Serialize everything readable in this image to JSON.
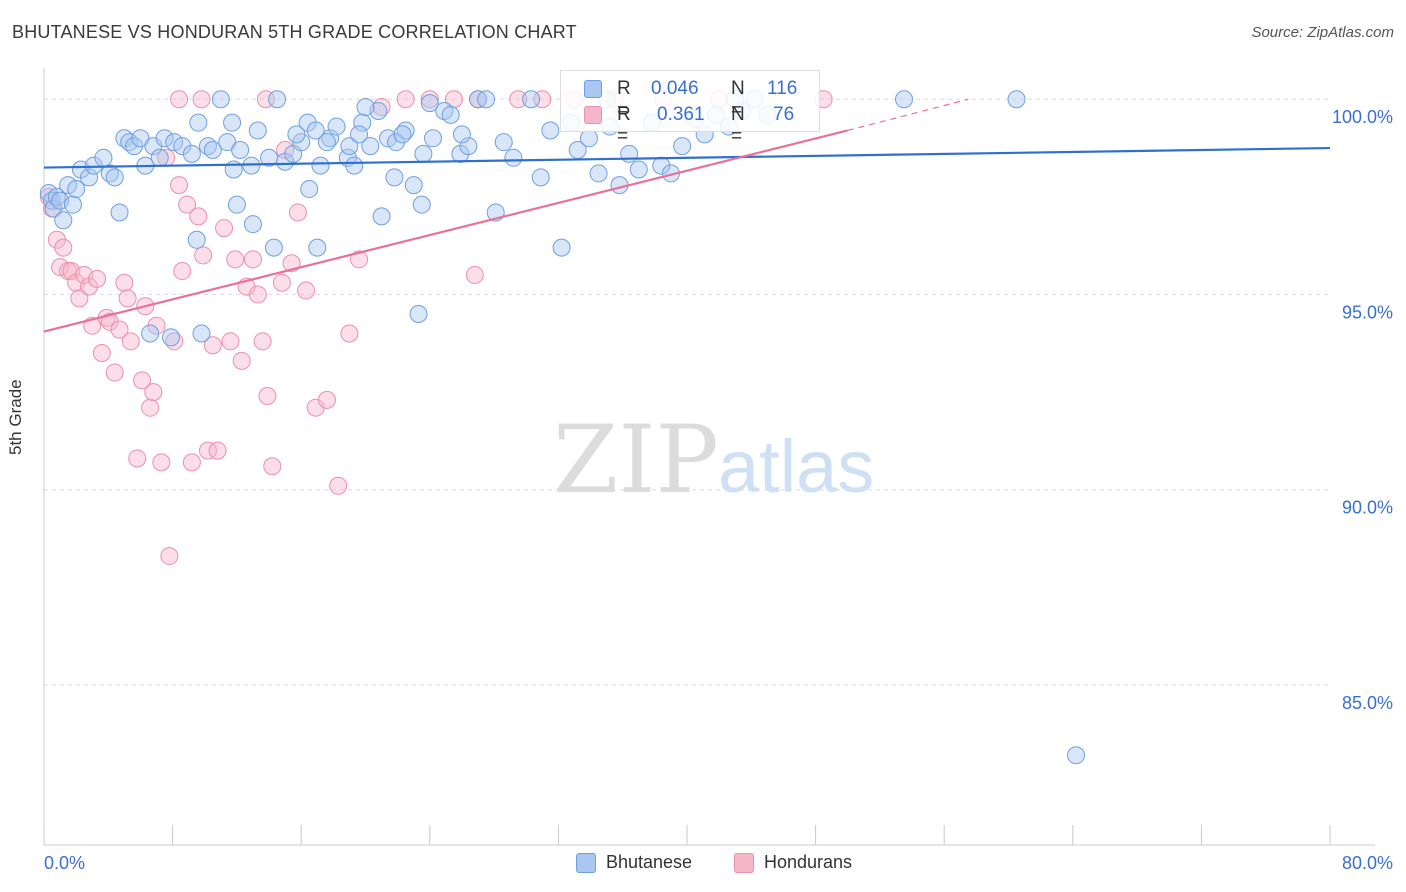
{
  "title": "BHUTANESE VS HONDURAN 5TH GRADE CORRELATION CHART",
  "source": "Source: ZipAtlas.com",
  "watermark": {
    "zip": "ZIP",
    "atlas": "atlas"
  },
  "legend_box": [
    {
      "r_label": "R =",
      "r_value": "0.046",
      "n_label": "N =",
      "n_value": "116"
    },
    {
      "r_label": "R =",
      "r_value": "0.361",
      "n_label": "N =",
      "n_value": "76"
    }
  ],
  "colors": {
    "blue_fill": "#a9c7f0",
    "blue_stroke": "#6f9fe0",
    "blue_line": "#2f6fd0",
    "pink_fill": "#f6b6c9",
    "pink_stroke": "#ec8fac",
    "pink_line": "#e8709a",
    "axis_text": "#3a6fd0",
    "grid": "#dcdcdc"
  },
  "chart_data": {
    "type": "scatter",
    "xlabel": "",
    "ylabel": "5th Grade",
    "xlim": [
      0,
      80
    ],
    "ylim": [
      80.9,
      100.8
    ],
    "x_tick_labels": [
      "0.0%",
      "80.0%"
    ],
    "y_ticks": [
      100,
      95,
      90,
      85
    ],
    "y_tick_labels": [
      "100.0%",
      "95.0%",
      "90.0%",
      "85.0%"
    ],
    "grid": true,
    "legend_position": "bottom",
    "series": [
      {
        "name": "Bhutanese",
        "color": "blue",
        "regression": {
          "x0": 0,
          "y0": 98.25,
          "x1": 80,
          "y1": 98.75
        },
        "points": [
          [
            0.3,
            97.6
          ],
          [
            0.5,
            97.4
          ],
          [
            0.6,
            97.2
          ],
          [
            0.8,
            97.5
          ],
          [
            1.0,
            97.4
          ],
          [
            1.2,
            96.9
          ],
          [
            1.5,
            97.8
          ],
          [
            1.8,
            97.3
          ],
          [
            2.0,
            97.7
          ],
          [
            2.3,
            98.2
          ],
          [
            2.8,
            98.0
          ],
          [
            3.1,
            98.3
          ],
          [
            3.7,
            98.5
          ],
          [
            4.1,
            98.1
          ],
          [
            4.4,
            98.0
          ],
          [
            4.7,
            97.1
          ],
          [
            5.0,
            99.0
          ],
          [
            5.3,
            98.9
          ],
          [
            5.6,
            98.8
          ],
          [
            6.0,
            99.0
          ],
          [
            6.3,
            98.3
          ],
          [
            6.8,
            98.8
          ],
          [
            7.2,
            98.5
          ],
          [
            7.5,
            99.0
          ],
          [
            8.1,
            98.9
          ],
          [
            8.6,
            98.8
          ],
          [
            9.2,
            98.6
          ],
          [
            9.6,
            99.4
          ],
          [
            10.2,
            98.8
          ],
          [
            10.5,
            98.7
          ],
          [
            11.0,
            100.0
          ],
          [
            11.4,
            98.9
          ],
          [
            11.8,
            98.2
          ],
          [
            12.2,
            98.7
          ],
          [
            12.9,
            98.3
          ],
          [
            13.3,
            99.2
          ],
          [
            14.0,
            98.5
          ],
          [
            14.5,
            100.0
          ],
          [
            15.0,
            98.4
          ],
          [
            15.5,
            98.6
          ],
          [
            16.0,
            98.9
          ],
          [
            16.4,
            99.4
          ],
          [
            16.9,
            99.2
          ],
          [
            17.2,
            98.3
          ],
          [
            17.8,
            99.0
          ],
          [
            18.2,
            99.3
          ],
          [
            18.9,
            98.5
          ],
          [
            19.3,
            98.3
          ],
          [
            19.8,
            99.4
          ],
          [
            20.3,
            98.8
          ],
          [
            20.8,
            99.7
          ],
          [
            21.4,
            99.0
          ],
          [
            21.9,
            98.9
          ],
          [
            22.5,
            99.2
          ],
          [
            23.0,
            97.8
          ],
          [
            23.6,
            98.6
          ],
          [
            24.2,
            99.0
          ],
          [
            24.9,
            99.7
          ],
          [
            25.3,
            99.6
          ],
          [
            25.9,
            98.6
          ],
          [
            26.4,
            98.8
          ],
          [
            27.0,
            100.0
          ],
          [
            27.5,
            100.0
          ],
          [
            28.1,
            97.1
          ],
          [
            28.6,
            98.9
          ],
          [
            29.2,
            98.5
          ],
          [
            30.3,
            100.0
          ],
          [
            30.9,
            98.0
          ],
          [
            31.5,
            99.2
          ],
          [
            32.2,
            96.2
          ],
          [
            32.8,
            99.4
          ],
          [
            33.2,
            98.7
          ],
          [
            33.9,
            99.0
          ],
          [
            34.5,
            98.1
          ],
          [
            35.2,
            99.3
          ],
          [
            35.8,
            97.8
          ],
          [
            36.4,
            98.6
          ],
          [
            37.0,
            98.2
          ],
          [
            37.8,
            99.4
          ],
          [
            38.4,
            98.3
          ],
          [
            39.0,
            98.1
          ],
          [
            39.7,
            98.8
          ],
          [
            40.5,
            99.5
          ],
          [
            41.1,
            99.1
          ],
          [
            41.8,
            99.6
          ],
          [
            42.6,
            99.3
          ],
          [
            43.4,
            99.7
          ],
          [
            44.2,
            100.0
          ],
          [
            45.0,
            99.6
          ],
          [
            12.0,
            97.3
          ],
          [
            13.0,
            96.8
          ],
          [
            14.3,
            96.2
          ],
          [
            16.5,
            97.7
          ],
          [
            17.0,
            96.2
          ],
          [
            19.0,
            98.8
          ],
          [
            19.6,
            99.1
          ],
          [
            21.0,
            97.0
          ],
          [
            21.8,
            98.0
          ],
          [
            22.3,
            99.1
          ],
          [
            23.5,
            97.3
          ],
          [
            6.6,
            94.0
          ],
          [
            7.9,
            93.9
          ],
          [
            9.8,
            94.0
          ],
          [
            9.5,
            96.4
          ],
          [
            11.7,
            99.4
          ],
          [
            15.7,
            99.1
          ],
          [
            17.6,
            98.9
          ],
          [
            20.0,
            99.8
          ],
          [
            24.0,
            99.9
          ],
          [
            26.0,
            99.1
          ],
          [
            35.0,
            100.0
          ],
          [
            43.0,
            100.0
          ],
          [
            53.5,
            100.0
          ],
          [
            60.5,
            100.0
          ],
          [
            23.3,
            94.5
          ],
          [
            64.2,
            83.2
          ]
        ]
      },
      {
        "name": "Hondurans",
        "color": "pink",
        "regression": {
          "x0": 0,
          "y0": 94.05,
          "x1": 50,
          "y1": 99.2
        },
        "regression_dashed_extension": {
          "x0": 50,
          "y0": 99.2,
          "x1": 57.5,
          "y1": 100.0
        },
        "points": [
          [
            0.3,
            97.5
          ],
          [
            0.5,
            97.2
          ],
          [
            0.8,
            96.4
          ],
          [
            1.0,
            95.7
          ],
          [
            1.2,
            96.2
          ],
          [
            1.5,
            95.6
          ],
          [
            1.7,
            95.6
          ],
          [
            2.0,
            95.3
          ],
          [
            2.2,
            94.9
          ],
          [
            2.5,
            95.5
          ],
          [
            2.8,
            95.2
          ],
          [
            3.0,
            94.2
          ],
          [
            3.3,
            95.4
          ],
          [
            3.6,
            93.5
          ],
          [
            3.9,
            94.4
          ],
          [
            4.1,
            94.3
          ],
          [
            4.4,
            93.0
          ],
          [
            4.7,
            94.1
          ],
          [
            5.0,
            95.3
          ],
          [
            5.2,
            94.9
          ],
          [
            5.4,
            93.8
          ],
          [
            5.8,
            90.8
          ],
          [
            6.1,
            92.8
          ],
          [
            6.3,
            94.7
          ],
          [
            6.6,
            92.1
          ],
          [
            6.8,
            92.5
          ],
          [
            7.0,
            94.2
          ],
          [
            7.3,
            90.7
          ],
          [
            7.6,
            98.5
          ],
          [
            7.8,
            88.3
          ],
          [
            8.1,
            93.8
          ],
          [
            8.4,
            97.8
          ],
          [
            8.6,
            95.6
          ],
          [
            8.9,
            97.3
          ],
          [
            9.2,
            90.7
          ],
          [
            9.6,
            97.0
          ],
          [
            9.9,
            96.0
          ],
          [
            10.2,
            91.0
          ],
          [
            10.5,
            93.7
          ],
          [
            10.8,
            91.0
          ],
          [
            11.2,
            96.7
          ],
          [
            11.6,
            93.8
          ],
          [
            11.9,
            95.9
          ],
          [
            12.3,
            93.3
          ],
          [
            12.6,
            95.2
          ],
          [
            13.0,
            95.9
          ],
          [
            13.3,
            95.0
          ],
          [
            13.6,
            93.8
          ],
          [
            13.9,
            92.4
          ],
          [
            14.2,
            90.6
          ],
          [
            14.8,
            95.3
          ],
          [
            15.4,
            95.8
          ],
          [
            15.8,
            97.1
          ],
          [
            16.3,
            95.1
          ],
          [
            16.9,
            92.1
          ],
          [
            17.6,
            92.3
          ],
          [
            18.3,
            90.1
          ],
          [
            19.0,
            94.0
          ],
          [
            19.6,
            95.9
          ],
          [
            21.0,
            99.8
          ],
          [
            22.5,
            100.0
          ],
          [
            24.0,
            100.0
          ],
          [
            25.5,
            100.0
          ],
          [
            27.0,
            100.0
          ],
          [
            29.5,
            100.0
          ],
          [
            31.0,
            100.0
          ],
          [
            33.0,
            100.0
          ],
          [
            35.5,
            100.0
          ],
          [
            38.5,
            100.0
          ],
          [
            42.0,
            100.0
          ],
          [
            48.5,
            100.0
          ],
          [
            26.8,
            95.5
          ],
          [
            15.0,
            98.7
          ],
          [
            13.8,
            100.0
          ],
          [
            9.8,
            100.0
          ],
          [
            8.4,
            100.0
          ]
        ]
      }
    ]
  }
}
